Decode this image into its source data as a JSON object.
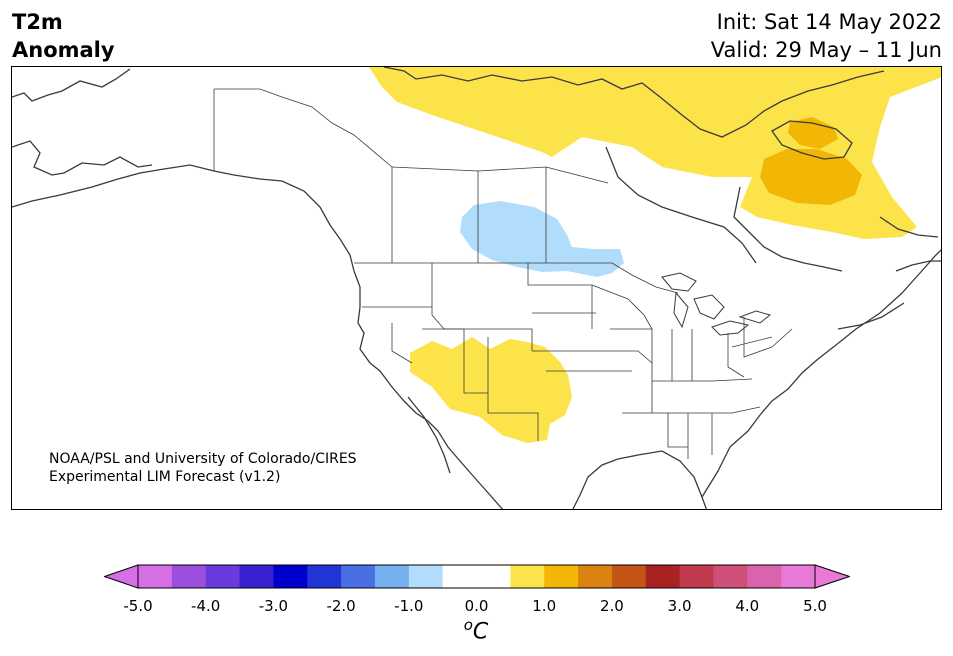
{
  "title": {
    "line1": "T2m",
    "line2": "Anomaly"
  },
  "dates": {
    "init": "Init: Sat 14 May 2022",
    "valid": "Valid: 29 May – 11 Jun"
  },
  "credit": {
    "line1": "NOAA/PSL and University of Colorado/CIRES",
    "line2": "Experimental LIM Forecast (v1.2)"
  },
  "colorbar": {
    "unit_base": "C",
    "unit_super": "o",
    "ticks": [
      "-5.0",
      "-4.0",
      "-3.0",
      "-2.0",
      "-1.0",
      "0.0",
      "1.0",
      "2.0",
      "3.0",
      "4.0",
      "5.0"
    ],
    "colors": [
      "#d66ee6",
      "#9b4fdc",
      "#6a3bdc",
      "#3a21d0",
      "#0000cd",
      "#2236d8",
      "#4a6fe3",
      "#76b0f0",
      "#b1dcfb",
      "#ffffff",
      "#ffffff",
      "#fde34a",
      "#f2b705",
      "#dc8210",
      "#c55417",
      "#a82222",
      "#c23a4e",
      "#cf5078",
      "#db62ac",
      "#e879d7"
    ],
    "under_color": "#d66ee6",
    "over_color": "#e879d7"
  },
  "anomaly_colors": {
    "warm1": "#fde34a",
    "warm2": "#f2b705",
    "cool1": "#b1dcfb"
  }
}
